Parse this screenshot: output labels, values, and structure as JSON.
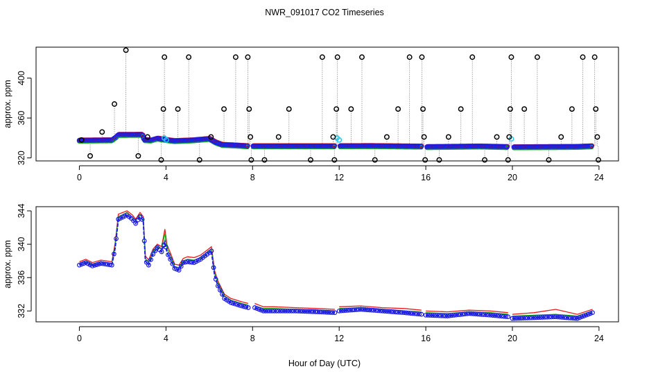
{
  "title": "NWR_091017  CO2 Timeseries",
  "xlabel": "Hour of Day (UTC)",
  "chart_data": [
    {
      "type": "scatter",
      "name": "top-panel",
      "ylabel": "approx. ppm",
      "xlim": [
        -2,
        24.9
      ],
      "ylim": [
        317,
        431
      ],
      "x_ticks": [
        0,
        4,
        8,
        12,
        16,
        20,
        24
      ],
      "y_ticks": [
        320,
        360,
        400
      ],
      "x_tick_labels": [
        "0",
        "4",
        "8",
        "12",
        "16",
        "20",
        "24"
      ],
      "y_tick_labels": [
        "320",
        "360",
        "400"
      ],
      "baseline": [
        [
          0.0,
          337.5
        ],
        [
          1.5,
          337.8
        ],
        [
          1.7,
          341
        ],
        [
          1.8,
          343.2
        ],
        [
          2.9,
          343.3
        ],
        [
          3.0,
          338
        ],
        [
          3.3,
          337.6
        ],
        [
          3.6,
          339.5
        ],
        [
          4.1,
          337.8
        ],
        [
          4.4,
          337
        ],
        [
          5.2,
          337.7
        ],
        [
          6.0,
          339.2
        ],
        [
          6.3,
          335.5
        ],
        [
          6.6,
          333.2
        ],
        [
          7.2,
          332.6
        ],
        [
          7.8,
          331.8
        ],
        [
          11.8,
          331.8
        ],
        [
          12.0,
          331.9
        ],
        [
          13.5,
          332
        ],
        [
          15.8,
          331.5
        ],
        [
          16.0,
          331.0
        ],
        [
          18.5,
          331.6
        ],
        [
          19.8,
          331.0
        ],
        [
          20.0,
          330.8
        ],
        [
          21.5,
          331.0
        ],
        [
          23.0,
          331.2
        ],
        [
          23.7,
          331.8
        ]
      ],
      "spikes": [
        {
          "x": 0.1,
          "y": 338
        },
        {
          "x": 0.5,
          "y": 322
        },
        {
          "x": 1.05,
          "y": 346
        },
        {
          "x": 1.62,
          "y": 374
        },
        {
          "x": 2.15,
          "y": 428
        },
        {
          "x": 2.72,
          "y": 322
        },
        {
          "x": 3.15,
          "y": 341
        },
        {
          "x": 3.78,
          "y": 318
        },
        {
          "x": 3.88,
          "y": 369
        },
        {
          "x": 3.93,
          "y": 421
        },
        {
          "x": 4.55,
          "y": 369
        },
        {
          "x": 5.05,
          "y": 421
        },
        {
          "x": 5.55,
          "y": 318
        },
        {
          "x": 6.08,
          "y": 341
        },
        {
          "x": 6.68,
          "y": 369
        },
        {
          "x": 7.22,
          "y": 421
        },
        {
          "x": 7.78,
          "y": 421
        },
        {
          "x": 7.84,
          "y": 369
        },
        {
          "x": 7.9,
          "y": 341
        },
        {
          "x": 7.94,
          "y": 318
        },
        {
          "x": 8.55,
          "y": 318
        },
        {
          "x": 9.2,
          "y": 341
        },
        {
          "x": 9.68,
          "y": 369
        },
        {
          "x": 10.68,
          "y": 318
        },
        {
          "x": 11.22,
          "y": 421
        },
        {
          "x": 11.72,
          "y": 341
        },
        {
          "x": 11.78,
          "y": 318
        },
        {
          "x": 11.87,
          "y": 369
        },
        {
          "x": 11.92,
          "y": 421
        },
        {
          "x": 12.55,
          "y": 369
        },
        {
          "x": 13.05,
          "y": 421
        },
        {
          "x": 13.65,
          "y": 318
        },
        {
          "x": 14.2,
          "y": 341
        },
        {
          "x": 14.72,
          "y": 369
        },
        {
          "x": 15.25,
          "y": 421
        },
        {
          "x": 15.82,
          "y": 421
        },
        {
          "x": 15.87,
          "y": 369
        },
        {
          "x": 15.92,
          "y": 341
        },
        {
          "x": 15.97,
          "y": 318
        },
        {
          "x": 16.62,
          "y": 318
        },
        {
          "x": 17.05,
          "y": 341
        },
        {
          "x": 17.62,
          "y": 369
        },
        {
          "x": 18.15,
          "y": 421
        },
        {
          "x": 18.72,
          "y": 318
        },
        {
          "x": 19.28,
          "y": 341
        },
        {
          "x": 19.8,
          "y": 318
        },
        {
          "x": 19.85,
          "y": 341
        },
        {
          "x": 19.9,
          "y": 369
        },
        {
          "x": 19.95,
          "y": 421
        },
        {
          "x": 20.55,
          "y": 369
        },
        {
          "x": 21.15,
          "y": 421
        },
        {
          "x": 21.68,
          "y": 318
        },
        {
          "x": 22.25,
          "y": 341
        },
        {
          "x": 22.75,
          "y": 369
        },
        {
          "x": 23.25,
          "y": 421
        },
        {
          "x": 23.8,
          "y": 421
        },
        {
          "x": 23.85,
          "y": 369
        },
        {
          "x": 23.92,
          "y": 341
        },
        {
          "x": 23.97,
          "y": 318
        }
      ],
      "cyan_points": [
        {
          "x": 3.92,
          "y": 340
        },
        {
          "x": 4.02,
          "y": 338
        },
        {
          "x": 11.9,
          "y": 340
        },
        {
          "x": 12.0,
          "y": 338
        },
        {
          "x": 19.95,
          "y": 339
        }
      ],
      "gaps": [
        [
          7.8,
          8.0
        ],
        [
          11.82,
          12.02
        ],
        [
          15.8,
          16.02
        ],
        [
          19.78,
          20.02
        ]
      ]
    },
    {
      "type": "line",
      "name": "bottom-panel",
      "ylabel": "approx. ppm",
      "xlim": [
        -2,
        24.9
      ],
      "ylim": [
        330.7,
        344.5
      ],
      "x_ticks": [
        0,
        4,
        8,
        12,
        16,
        20,
        24
      ],
      "y_ticks": [
        332,
        336,
        340,
        344
      ],
      "x_tick_labels": [
        "0",
        "4",
        "8",
        "12",
        "16",
        "20",
        "24"
      ],
      "y_tick_labels": [
        "332",
        "336",
        "340",
        "344"
      ],
      "series": [
        {
          "name": "blue",
          "points": [
            [
              0.0,
              337.5
            ],
            [
              0.3,
              337.8
            ],
            [
              0.6,
              337.4
            ],
            [
              1.0,
              337.7
            ],
            [
              1.5,
              337.5
            ],
            [
              1.65,
              339.5
            ],
            [
              1.8,
              343.0
            ],
            [
              2.2,
              343.5
            ],
            [
              2.45,
              343.0
            ],
            [
              2.6,
              342.5
            ],
            [
              2.8,
              343.3
            ],
            [
              2.95,
              342.8
            ],
            [
              3.05,
              338.0
            ],
            [
              3.2,
              337.5
            ],
            [
              3.4,
              338.8
            ],
            [
              3.6,
              339.6
            ],
            [
              3.8,
              339.1
            ],
            [
              3.95,
              340.3
            ],
            [
              4.05,
              339.0
            ],
            [
              4.2,
              338.2
            ],
            [
              4.4,
              337.1
            ],
            [
              4.6,
              336.9
            ],
            [
              4.8,
              337.8
            ],
            [
              5.0,
              337.9
            ],
            [
              5.3,
              337.8
            ],
            [
              5.6,
              338.2
            ],
            [
              5.9,
              338.8
            ],
            [
              6.1,
              339.2
            ],
            [
              6.25,
              336.2
            ],
            [
              6.4,
              335.0
            ],
            [
              6.7,
              333.5
            ],
            [
              7.0,
              333.0
            ],
            [
              7.5,
              332.6
            ],
            [
              7.8,
              332.4
            ],
            null,
            [
              8.1,
              332.4
            ],
            [
              8.5,
              332.0
            ],
            [
              9.0,
              332.0
            ],
            [
              10.0,
              332.0
            ],
            [
              11.0,
              331.9
            ],
            [
              11.8,
              331.8
            ],
            null,
            [
              12.0,
              332.0
            ],
            [
              13.0,
              332.2
            ],
            [
              14.0,
              332.0
            ],
            [
              15.0,
              331.8
            ],
            [
              15.8,
              331.6
            ],
            null,
            [
              16.0,
              331.5
            ],
            [
              17.0,
              331.4
            ],
            [
              18.0,
              331.7
            ],
            [
              19.0,
              331.5
            ],
            [
              19.8,
              331.3
            ],
            null,
            [
              20.0,
              331.1
            ],
            [
              21.0,
              331.2
            ],
            [
              22.0,
              331.3
            ],
            [
              23.0,
              331.1
            ],
            [
              23.7,
              331.8
            ]
          ]
        },
        {
          "name": "green",
          "points": [
            [
              0.0,
              337.7
            ],
            [
              0.3,
              338.0
            ],
            [
              0.6,
              337.6
            ],
            [
              1.0,
              337.9
            ],
            [
              1.5,
              337.7
            ],
            [
              1.65,
              339.8
            ],
            [
              1.8,
              343.3
            ],
            [
              2.2,
              343.8
            ],
            [
              2.45,
              343.2
            ],
            [
              2.6,
              342.8
            ],
            [
              2.8,
              343.5
            ],
            [
              2.95,
              343.1
            ],
            [
              3.05,
              338.3
            ],
            [
              3.2,
              337.8
            ],
            [
              3.4,
              339.1
            ],
            [
              3.6,
              339.8
            ],
            [
              3.8,
              339.4
            ],
            [
              3.95,
              341.3
            ],
            [
              4.05,
              339.5
            ],
            [
              4.2,
              338.6
            ],
            [
              4.4,
              337.3
            ],
            [
              4.6,
              337.2
            ],
            [
              4.8,
              338.0
            ],
            [
              5.0,
              338.2
            ],
            [
              5.3,
              338.1
            ],
            [
              5.6,
              338.4
            ],
            [
              5.9,
              339.0
            ],
            [
              6.1,
              339.4
            ],
            [
              6.25,
              336.5
            ],
            [
              6.4,
              335.3
            ],
            [
              6.7,
              333.8
            ],
            [
              7.0,
              333.3
            ],
            [
              7.5,
              332.9
            ],
            [
              7.8,
              332.7
            ],
            null,
            [
              8.1,
              332.6
            ],
            [
              8.5,
              332.3
            ],
            [
              9.0,
              332.3
            ],
            [
              10.0,
              332.2
            ],
            [
              11.0,
              332.1
            ],
            [
              11.8,
              332.0
            ],
            null,
            [
              12.0,
              332.3
            ],
            [
              13.0,
              332.4
            ],
            [
              14.0,
              332.2
            ],
            [
              15.0,
              332.0
            ],
            [
              15.8,
              331.9
            ],
            null,
            [
              16.0,
              331.8
            ],
            [
              17.0,
              331.7
            ],
            [
              18.0,
              331.9
            ],
            [
              19.0,
              331.8
            ],
            [
              19.8,
              331.6
            ],
            null,
            [
              20.0,
              331.4
            ],
            [
              21.0,
              331.5
            ],
            [
              22.0,
              331.6
            ],
            [
              23.0,
              331.4
            ],
            [
              23.7,
              332.0
            ]
          ]
        },
        {
          "name": "red",
          "points": [
            [
              0.0,
              337.9
            ],
            [
              0.3,
              338.2
            ],
            [
              0.6,
              337.8
            ],
            [
              1.0,
              338.1
            ],
            [
              1.5,
              337.9
            ],
            [
              1.65,
              340.1
            ],
            [
              1.8,
              343.6
            ],
            [
              2.2,
              344.0
            ],
            [
              2.45,
              343.5
            ],
            [
              2.6,
              343.0
            ],
            [
              2.8,
              343.8
            ],
            [
              2.95,
              343.3
            ],
            [
              3.05,
              338.6
            ],
            [
              3.2,
              338.1
            ],
            [
              3.4,
              339.4
            ],
            [
              3.6,
              340.0
            ],
            [
              3.8,
              339.7
            ],
            [
              3.95,
              341.8
            ],
            [
              4.05,
              339.9
            ],
            [
              4.2,
              339.0
            ],
            [
              4.4,
              337.6
            ],
            [
              4.6,
              337.5
            ],
            [
              4.8,
              338.3
            ],
            [
              5.0,
              338.5
            ],
            [
              5.3,
              338.4
            ],
            [
              5.6,
              338.7
            ],
            [
              5.9,
              339.3
            ],
            [
              6.1,
              339.7
            ],
            [
              6.25,
              336.8
            ],
            [
              6.4,
              335.6
            ],
            [
              6.7,
              334.0
            ],
            [
              7.0,
              333.5
            ],
            [
              7.5,
              333.1
            ],
            [
              7.8,
              332.9
            ],
            null,
            [
              8.1,
              332.9
            ],
            [
              8.5,
              332.5
            ],
            [
              9.0,
              332.5
            ],
            [
              10.0,
              332.4
            ],
            [
              11.0,
              332.3
            ],
            [
              11.8,
              332.2
            ],
            null,
            [
              12.0,
              332.5
            ],
            [
              13.0,
              332.6
            ],
            [
              14.0,
              332.4
            ],
            [
              15.0,
              332.3
            ],
            [
              15.8,
              332.1
            ],
            null,
            [
              16.0,
              332.0
            ],
            [
              17.0,
              331.9
            ],
            [
              18.0,
              332.1
            ],
            [
              19.0,
              332.0
            ],
            [
              19.8,
              331.8
            ],
            null,
            [
              20.0,
              331.6
            ],
            [
              21.0,
              331.8
            ],
            [
              22.0,
              332.2
            ],
            [
              23.0,
              331.6
            ],
            [
              23.7,
              332.2
            ]
          ]
        }
      ]
    }
  ]
}
